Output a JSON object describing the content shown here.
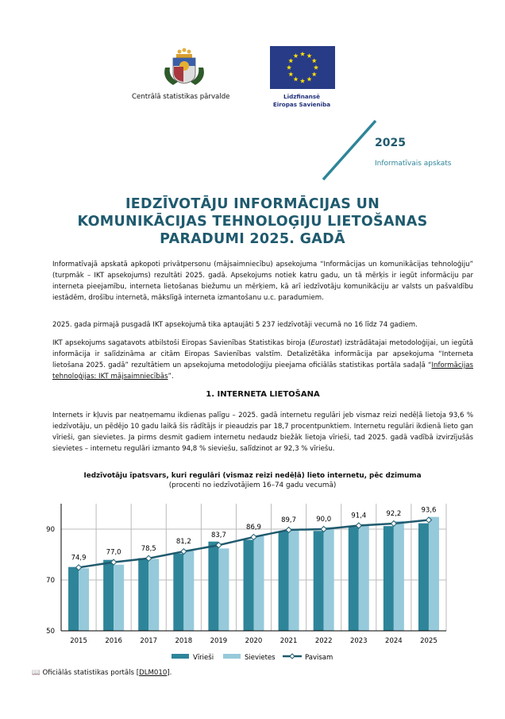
{
  "header": {
    "org_name": "Centrālā statistikas pārvalde",
    "eu_line1": "Līdzfinansē",
    "eu_line2": "Eiropas Savienība",
    "year": "2025",
    "doc_type": "Informatīvais apskats"
  },
  "title_lines": [
    "IEDZĪVOTĀJU INFORMĀCIJAS UN",
    "KOMUNIKĀCIJAS TEHNOLOĢIJU LIETOŠANAS",
    "PARADUMI 2025. GADĀ"
  ],
  "intro": {
    "p1": "Informatīvajā apskatā apkopoti privātpersonu (mājsaimniecību) apsekojuma “Informācijas un komunikācijas tehnoloģiju” (turpmāk – IKT apsekojums) rezultāti 2025. gadā. Apsekojums notiek katru gadu, un tā mērķis ir iegūt informāciju par interneta pieejamību, interneta lietošanas biežumu un mērķiem, kā arī iedzīvotāju komunikāciju ar valsts un pašvaldību iestādēm, drošību internetā, mākslīgā interneta izmantošanu u.c. paradumiem.",
    "p2": "2025. gada pirmajā pusgadā IKT apsekojumā tika aptaujāti 5 237 iedzīvotāji vecumā no 16 līdz 74 gadiem.",
    "p3_a": "IKT apsekojums sagatavots atbilstoši Eiropas Savienības Statistikas biroja (",
    "p3_em": "Eurostat",
    "p3_b": ") izstrādātajai metodoloģijai, un iegūtā informācija ir salīdzināma ar citām Eiropas Savienības valstīm. Detalizētāka informācija par apsekojuma “Interneta lietošana 2025. gadā” rezultātiem un apsekojuma metodoloģiju pieejama oficiālās statistikas portāla sadaļā “",
    "p3_link": "Informācijas tehnoloģijas: IKT mājsaimniecībās",
    "p3_c": "”."
  },
  "section1": {
    "heading": "1. INTERNETA LIETOŠANA",
    "p1": "Internets ir kļuvis par neatņemamu ikdienas palīgu – 2025. gadā internetu regulāri jeb vismaz reizi nedēļā lietoja 93,6 % iedzīvotāju, un pēdējo 10 gadu laikā šis rādītājs ir pieaudzis par 18,7 procentpunktiem. Internetu regulāri ikdienā lieto gan vīrieši, gan sievietes. Ja pirms desmit gadiem internetu nedaudz biežāk lietoja vīrieši, tad 2025. gadā vadībā izvirzījušās sievietes – internetu regulāri izmanto 94,8 % sieviešu, salīdzinot ar 92,3 % vīriešu."
  },
  "source": {
    "prefix": "Oficiālās statistikas portāls [",
    "link": "DLM010",
    "suffix": "]."
  },
  "colors": {
    "accent": "#2e8599",
    "title": "#1f5a6e",
    "men": "#2e8599",
    "women": "#96cadb",
    "total": "#1f5a6e"
  },
  "chart_data": {
    "type": "bar",
    "title": "Iedzīvotāju īpatsvars, kuri regulāri (vismaz reizi nedēļā) lieto internetu, pēc dzimuma",
    "subtitle": "(procenti no iedzīvotājiem 16–74 gadu vecumā)",
    "categories": [
      "2015",
      "2016",
      "2017",
      "2018",
      "2019",
      "2020",
      "2021",
      "2022",
      "2023",
      "2024",
      "2025"
    ],
    "ylim": [
      50,
      100
    ],
    "yticks": [
      50,
      70,
      90
    ],
    "grid": true,
    "legend": "bottom",
    "series": [
      {
        "name": "Vīrieši",
        "type": "bar",
        "values": [
          75.1,
          77.9,
          78.6,
          80.4,
          85.1,
          85.8,
          89.2,
          89.3,
          90.9,
          91.2,
          92.3
        ]
      },
      {
        "name": "Sievietes",
        "type": "bar",
        "values": [
          74.6,
          76.0,
          78.3,
          81.5,
          82.4,
          87.3,
          89.6,
          90.7,
          91.6,
          93.1,
          94.8
        ]
      },
      {
        "name": "Pavisam",
        "type": "line",
        "values": [
          74.9,
          77.0,
          78.5,
          81.2,
          83.7,
          86.9,
          89.7,
          90.0,
          91.4,
          92.2,
          93.6
        ],
        "labels": [
          "74,9",
          "77,0",
          "78,5",
          "81,2",
          "83,7",
          "86,9",
          "89,7",
          "90,0",
          "91,4",
          "92,2",
          "93,6"
        ]
      }
    ]
  }
}
